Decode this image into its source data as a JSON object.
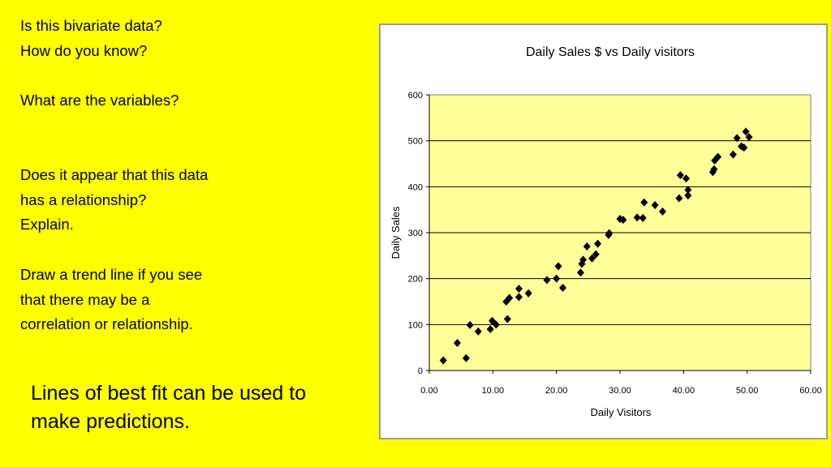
{
  "questions": [
    {
      "lines": [
        "Is this bivariate data?",
        "How do you know?"
      ]
    },
    {
      "lines": [
        "What are the variables?"
      ]
    },
    {
      "lines": [
        "Does it appear that this data",
        "has a relationship?",
        "Explain."
      ]
    },
    {
      "lines": [
        "Draw a trend line if you see",
        "that there may be a",
        "correlation or relationship."
      ]
    }
  ],
  "footer": {
    "lines": [
      "Lines of best fit can be used to",
      "make predictions."
    ]
  },
  "colors": {
    "background": "#ffff00",
    "plot_area": "#ffff99",
    "marker": "#000000"
  },
  "chart_data": {
    "type": "scatter",
    "title": "Daily Sales $ vs Daily visitors",
    "xlabel": "Daily Visitors",
    "ylabel": "Daily Sales",
    "xlim": [
      0,
      60
    ],
    "ylim": [
      0,
      600
    ],
    "x_ticks": [
      "0.00",
      "10.00",
      "20.00",
      "30.00",
      "40.00",
      "50.00",
      "60.00"
    ],
    "y_ticks": [
      "0",
      "100",
      "200",
      "300",
      "400",
      "500",
      "600"
    ],
    "grid": "horizontal",
    "marker": "diamond",
    "points": [
      [
        2.2,
        22
      ],
      [
        4.4,
        60
      ],
      [
        5.8,
        27
      ],
      [
        6.4,
        99
      ],
      [
        7.7,
        85
      ],
      [
        9.6,
        90
      ],
      [
        9.9,
        108
      ],
      [
        10.5,
        100
      ],
      [
        12.3,
        112
      ],
      [
        12.1,
        150
      ],
      [
        12.6,
        158
      ],
      [
        14.1,
        160
      ],
      [
        14.1,
        178
      ],
      [
        15.6,
        168
      ],
      [
        18.5,
        197
      ],
      [
        20.0,
        200
      ],
      [
        20.3,
        227
      ],
      [
        21.0,
        180
      ],
      [
        23.8,
        213
      ],
      [
        24.0,
        232
      ],
      [
        24.2,
        241
      ],
      [
        24.8,
        270
      ],
      [
        25.6,
        244
      ],
      [
        26.2,
        253
      ],
      [
        26.5,
        276
      ],
      [
        28.2,
        295
      ],
      [
        28.3,
        299
      ],
      [
        30.0,
        330
      ],
      [
        30.5,
        328
      ],
      [
        32.7,
        333
      ],
      [
        33.6,
        332
      ],
      [
        33.8,
        366
      ],
      [
        35.5,
        360
      ],
      [
        36.7,
        346
      ],
      [
        39.3,
        375
      ],
      [
        39.5,
        425
      ],
      [
        40.4,
        418
      ],
      [
        40.7,
        393
      ],
      [
        40.7,
        381
      ],
      [
        44.6,
        432
      ],
      [
        44.8,
        438
      ],
      [
        44.9,
        457
      ],
      [
        45.4,
        465
      ],
      [
        47.8,
        470
      ],
      [
        48.4,
        506
      ],
      [
        49.1,
        488
      ],
      [
        49.5,
        485
      ],
      [
        49.8,
        520
      ],
      [
        50.3,
        508
      ]
    ]
  }
}
